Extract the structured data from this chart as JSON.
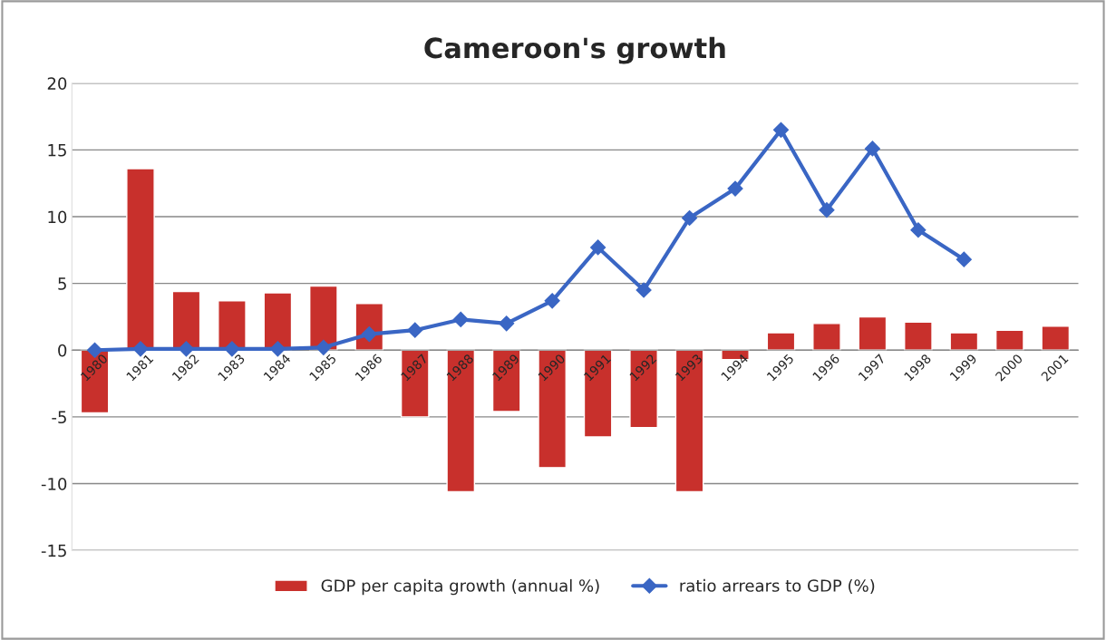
{
  "chart_data": {
    "type": "bar",
    "title": "Cameroon's growth",
    "categories": [
      "1980",
      "1981",
      "1982",
      "1983",
      "1984",
      "1985",
      "1986",
      "1987",
      "1988",
      "1989",
      "1990",
      "1991",
      "1992",
      "1993",
      "1994",
      "1995",
      "1996",
      "1997",
      "1998",
      "1999",
      "2000",
      "2001"
    ],
    "series": [
      {
        "name": "GDP per capita growth (annual %)",
        "color": "#c8302c",
        "values": [
          -4.7,
          13.6,
          4.4,
          3.7,
          4.3,
          4.8,
          3.5,
          -5.0,
          -10.6,
          -4.6,
          -8.8,
          -6.5,
          -5.8,
          -10.6,
          -0.7,
          1.3,
          2.0,
          2.5,
          2.1,
          1.3,
          1.5,
          1.8
        ]
      },
      {
        "name": "ratio arrears to GDP (%)",
        "type": "line",
        "color": "#3a66c4",
        "marker": "diamond",
        "values": [
          0,
          0.1,
          0.1,
          0.1,
          0.1,
          0.2,
          1.2,
          1.5,
          2.3,
          2.0,
          3.7,
          7.7,
          4.5,
          9.9,
          12.1,
          16.5,
          10.5,
          15.1,
          9.0,
          6.8,
          null,
          null
        ]
      }
    ],
    "ylim": [
      -15,
      20
    ],
    "yticks": [
      -15,
      -10,
      -5,
      0,
      5,
      10,
      15,
      20
    ],
    "grid": "y",
    "legend": "bottom"
  }
}
